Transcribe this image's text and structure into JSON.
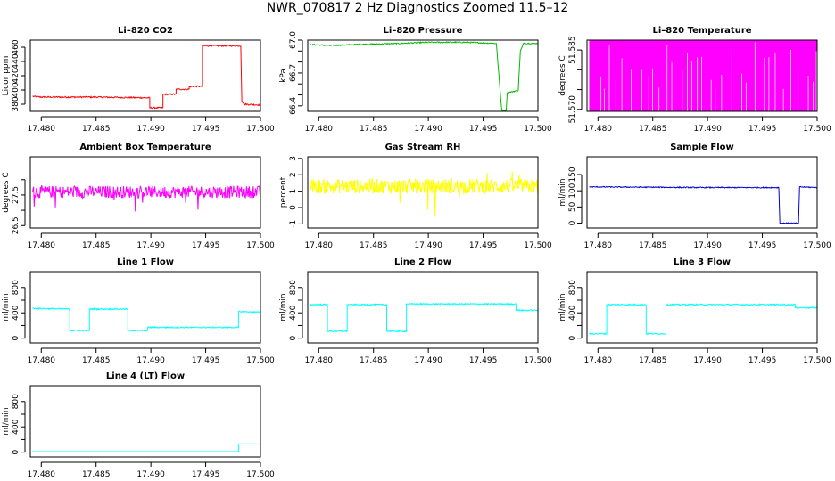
{
  "figure_title": "NWR_070817  2 Hz Diagnostics Zoomed 11.5–12",
  "chart_data": [
    {
      "type": "line",
      "title": "Li–820 CO2",
      "ylabel": "Licor ppm",
      "color": "#ff0000",
      "xlim": [
        17.479,
        17.5
      ],
      "xticks": [
        17.48,
        17.485,
        17.49,
        17.495,
        17.5
      ],
      "xtick_labels": [
        "17.480",
        "17.485",
        "17.490",
        "17.495",
        "17.500"
      ],
      "ylim": [
        370,
        470
      ],
      "yticks": [
        380,
        400,
        420,
        440,
        460
      ],
      "ytick_labels": [
        "380",
        "400",
        "420",
        "440",
        "460"
      ],
      "series": [
        {
          "noise": 1,
          "points": [
            [
              17.4792,
              391
            ],
            [
              17.48,
              390
            ],
            [
              17.485,
              390
            ],
            [
              17.4899,
              389
            ],
            [
              17.4899,
              375
            ],
            [
              17.4911,
              375
            ],
            [
              17.4911,
              394
            ],
            [
              17.4923,
              394
            ],
            [
              17.4923,
              401
            ],
            [
              17.4935,
              401
            ],
            [
              17.4935,
              405
            ],
            [
              17.4947,
              405
            ],
            [
              17.4947,
              462
            ],
            [
              17.4958,
              462
            ],
            [
              17.4978,
              462
            ],
            [
              17.4982,
              462
            ],
            [
              17.4983,
              385
            ],
            [
              17.4985,
              380
            ],
            [
              17.5,
              379
            ]
          ]
        }
      ]
    },
    {
      "type": "line",
      "title": "Li–820 Pressure",
      "ylabel": "kPa",
      "color": "#00bb00",
      "xlim": [
        17.479,
        17.5
      ],
      "xticks": [
        17.48,
        17.485,
        17.49,
        17.495,
        17.5
      ],
      "xtick_labels": [
        "17.480",
        "17.485",
        "17.490",
        "17.495",
        "17.500"
      ],
      "ylim": [
        66.35,
        67.0
      ],
      "yticks": [
        66.4,
        66.5,
        66.6,
        66.7,
        66.8,
        66.9,
        67.0
      ],
      "ytick_labels": [
        "66.4",
        "",
        "",
        "66.7",
        "",
        "",
        "67.0"
      ],
      "series": [
        {
          "noise": 0.005,
          "points": [
            [
              17.4792,
              66.96
            ],
            [
              17.481,
              66.95
            ],
            [
              17.4835,
              66.96
            ],
            [
              17.4875,
              66.97
            ],
            [
              17.49,
              66.98
            ],
            [
              17.4935,
              66.98
            ],
            [
              17.4962,
              66.97
            ],
            [
              17.4965,
              66.6
            ],
            [
              17.4967,
              66.36
            ],
            [
              17.4971,
              66.36
            ],
            [
              17.4972,
              66.52
            ],
            [
              17.4982,
              66.54
            ],
            [
              17.4984,
              66.9
            ],
            [
              17.4987,
              66.97
            ],
            [
              17.5,
              66.97
            ]
          ]
        }
      ]
    },
    {
      "type": "line",
      "title": "Li–820 Temperature",
      "ylabel": "degrees C",
      "color": "#ff00ff",
      "style": "dense-switch",
      "xlim": [
        17.479,
        17.5
      ],
      "xticks": [
        17.48,
        17.485,
        17.49,
        17.495,
        17.5
      ],
      "xtick_labels": [
        "17.480",
        "17.485",
        "17.490",
        "17.495",
        "17.500"
      ],
      "ylim": [
        51.5695,
        51.5875
      ],
      "yticks": [
        51.57,
        51.575,
        51.58,
        51.585
      ],
      "ytick_labels": [
        "51.570",
        "",
        "",
        "51.585"
      ],
      "series": [
        {
          "levels": [
            51.5695,
            51.5875
          ],
          "points": [
            [
              17.4792,
              51.5875
            ],
            [
              17.5,
              51.5875
            ]
          ]
        }
      ]
    },
    {
      "type": "line",
      "title": "Ambient Box Temperature",
      "ylabel": "degrees C",
      "color": "#ff00ff",
      "xlim": [
        17.479,
        17.5
      ],
      "xticks": [
        17.48,
        17.485,
        17.49,
        17.495,
        17.5
      ],
      "xtick_labels": [
        "17.480",
        "17.485",
        "17.490",
        "17.495",
        "17.500"
      ],
      "ylim": [
        26.42,
        28.75
      ],
      "yticks": [
        26.5,
        27.0,
        27.5,
        28.0
      ],
      "ytick_labels": [
        "26.5",
        "",
        "27.5",
        ""
      ],
      "series": [
        {
          "noise": 0.2,
          "spike": 0.45,
          "points": [
            [
              17.4792,
              27.6
            ],
            [
              17.5,
              27.6
            ]
          ]
        }
      ]
    },
    {
      "type": "line",
      "title": "Gas Stream RH",
      "ylabel": "percent",
      "color": "#ffff00",
      "xlim": [
        17.479,
        17.5
      ],
      "xticks": [
        17.48,
        17.485,
        17.49,
        17.495,
        17.5
      ],
      "xtick_labels": [
        "17.480",
        "17.485",
        "17.490",
        "17.495",
        "17.500"
      ],
      "ylim": [
        -1.25,
        3.1
      ],
      "yticks": [
        -1,
        0,
        1,
        2,
        3
      ],
      "ytick_labels": [
        "-1",
        "0",
        "1",
        "2",
        "3"
      ],
      "series": [
        {
          "noise": 0.45,
          "spike": 1.4,
          "points": [
            [
              17.4792,
              1.3
            ],
            [
              17.5,
              1.3
            ]
          ]
        }
      ]
    },
    {
      "type": "line",
      "title": "Sample Flow",
      "ylabel": "ml/min",
      "color": "#0000cc",
      "xlim": [
        17.479,
        17.5
      ],
      "xticks": [
        17.48,
        17.485,
        17.49,
        17.495,
        17.5
      ],
      "xtick_labels": [
        "17.480",
        "17.485",
        "17.490",
        "17.495",
        "17.500"
      ],
      "ylim": [
        -15,
        205
      ],
      "yticks": [
        0,
        50,
        100,
        150
      ],
      "ytick_labels": [
        "0",
        "50",
        "100",
        "150"
      ],
      "series": [
        {
          "noise": 1.5,
          "points": [
            [
              17.4792,
              112
            ],
            [
              17.485,
              111
            ],
            [
              17.49,
              110
            ],
            [
              17.4965,
              110
            ],
            [
              17.4966,
              0
            ],
            [
              17.4983,
              0
            ],
            [
              17.4984,
              112
            ],
            [
              17.5,
              110
            ]
          ]
        }
      ]
    },
    {
      "type": "line",
      "title": "Line 1 Flow",
      "ylabel": "ml/min",
      "color": "#00ffff",
      "xlim": [
        17.479,
        17.5
      ],
      "xticks": [
        17.48,
        17.485,
        17.49,
        17.495,
        17.5
      ],
      "xtick_labels": [
        "17.480",
        "17.485",
        "17.490",
        "17.495",
        "17.500"
      ],
      "ylim": [
        -75,
        1050
      ],
      "yticks": [
        0,
        200,
        400,
        600,
        800
      ],
      "ytick_labels": [
        "0",
        "",
        "400",
        "",
        "800"
      ],
      "series": [
        {
          "noise": 10,
          "points": [
            [
              17.4792,
              470
            ],
            [
              17.4826,
              460
            ],
            [
              17.4826,
              120
            ],
            [
              17.4844,
              120
            ],
            [
              17.4844,
              460
            ],
            [
              17.4879,
              460
            ],
            [
              17.4879,
              120
            ],
            [
              17.4897,
              120
            ],
            [
              17.4897,
              170
            ],
            [
              17.498,
              170
            ],
            [
              17.498,
              420
            ],
            [
              17.5,
              410
            ]
          ]
        }
      ]
    },
    {
      "type": "line",
      "title": "Line 2 Flow",
      "ylabel": "ml/min",
      "color": "#00ffff",
      "xlim": [
        17.479,
        17.5
      ],
      "xticks": [
        17.48,
        17.485,
        17.49,
        17.495,
        17.5
      ],
      "xtick_labels": [
        "17.480",
        "17.485",
        "17.490",
        "17.495",
        "17.500"
      ],
      "ylim": [
        -75,
        1050
      ],
      "yticks": [
        0,
        200,
        400,
        600,
        800
      ],
      "ytick_labels": [
        "0",
        "",
        "400",
        "",
        "800"
      ],
      "series": [
        {
          "noise": 10,
          "points": [
            [
              17.4792,
              530
            ],
            [
              17.4808,
              530
            ],
            [
              17.4808,
              110
            ],
            [
              17.4826,
              110
            ],
            [
              17.4826,
              530
            ],
            [
              17.4862,
              530
            ],
            [
              17.4862,
              110
            ],
            [
              17.488,
              110
            ],
            [
              17.488,
              540
            ],
            [
              17.498,
              540
            ],
            [
              17.498,
              440
            ],
            [
              17.5,
              440
            ]
          ]
        }
      ]
    },
    {
      "type": "line",
      "title": "Line 3 Flow",
      "ylabel": "ml/min",
      "color": "#00ffff",
      "xlim": [
        17.479,
        17.5
      ],
      "xticks": [
        17.48,
        17.485,
        17.49,
        17.495,
        17.5
      ],
      "xtick_labels": [
        "17.480",
        "17.485",
        "17.490",
        "17.495",
        "17.500"
      ],
      "ylim": [
        -75,
        1050
      ],
      "yticks": [
        0,
        200,
        400,
        600,
        800
      ],
      "ytick_labels": [
        "0",
        "",
        "400",
        "",
        "800"
      ],
      "series": [
        {
          "noise": 10,
          "points": [
            [
              17.4792,
              70
            ],
            [
              17.4808,
              70
            ],
            [
              17.4808,
              530
            ],
            [
              17.4844,
              530
            ],
            [
              17.4844,
              70
            ],
            [
              17.4862,
              70
            ],
            [
              17.4862,
              530
            ],
            [
              17.498,
              530
            ],
            [
              17.498,
              480
            ],
            [
              17.5,
              480
            ]
          ]
        }
      ]
    },
    {
      "type": "line",
      "title": "Line 4 (LT) Flow",
      "ylabel": "ml/min",
      "color": "#00ffff",
      "xlim": [
        17.479,
        17.5
      ],
      "xticks": [
        17.48,
        17.485,
        17.49,
        17.495,
        17.5
      ],
      "xtick_labels": [
        "17.480",
        "17.485",
        "17.490",
        "17.495",
        "17.500"
      ],
      "ylim": [
        -75,
        1050
      ],
      "yticks": [
        0,
        200,
        400,
        600,
        800
      ],
      "ytick_labels": [
        "0",
        "",
        "400",
        "",
        "800"
      ],
      "series": [
        {
          "noise": 0,
          "points": [
            [
              17.4792,
              10
            ],
            [
              17.498,
              10
            ],
            [
              17.498,
              130
            ],
            [
              17.5,
              130
            ]
          ]
        }
      ]
    }
  ]
}
